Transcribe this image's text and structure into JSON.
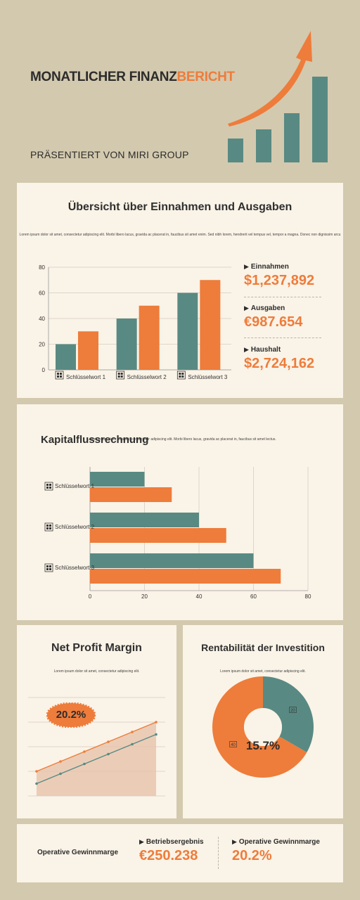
{
  "header": {
    "title_part1": "MONATLICHER FINANZ",
    "title_part2": "BERICHT",
    "subtitle": "PRÄSENTIERT VON MIRI GROUP",
    "accent_color": "#ee7c3b",
    "teal_color": "#588a83"
  },
  "overview": {
    "title": "Übersicht über Einnahmen und Ausgaben",
    "lorem": "Lorem ipsum dolor sit amet, consectetur adipiscing elit. Morbi libero lacus, gravida ac placerat in, faucibus sit amet enim. Sed nibh lorem, hendrerit vel tempus vel, tempor a magna. Donec non dignissim arcu",
    "stats": [
      {
        "label": "Einnahmen",
        "value": "$1,237,892"
      },
      {
        "label": "Ausgaben",
        "value": "€987.654"
      },
      {
        "label": "Haushalt",
        "value": "$2,724,162"
      }
    ]
  },
  "cashflow": {
    "title": "Kapitalflussrechnung",
    "lorem": "Lorem ipsum dolor sit amet, consectetur adipiscing elit. Morbi libero lacus, gravida ac placerat in, faucibus sit amet lectus."
  },
  "npm": {
    "title": "Net Profit Margin",
    "lorem": "Lorem ipsum dolor sit amet, consectetur adipiscing elit.",
    "badge": "20.2%"
  },
  "roi": {
    "title": "Rentabilität der Investition",
    "lorem": "Lorem ipsum dolor sit amet, consectetur adipiscing elit.",
    "center": "15.7%"
  },
  "footer": {
    "label": "Operative Gewinnmarge",
    "stats": [
      {
        "label": "Betriebsergebnis",
        "value": "€250.238"
      },
      {
        "label": "Operative Gewinnmarge",
        "value": "20.2%"
      }
    ]
  },
  "chart_data": [
    {
      "type": "bar",
      "categories": [
        "Schlüsselwort 1",
        "Schlüsselwort 2",
        "Schlüsselwort 3"
      ],
      "series": [
        {
          "values": [
            20,
            40,
            60
          ],
          "color": "#588a83"
        },
        {
          "values": [
            30,
            50,
            70
          ],
          "color": "#ee7c3b"
        }
      ],
      "ylim": [
        0,
        80
      ],
      "yticks": [
        0,
        20,
        40,
        60,
        80
      ],
      "grid": true
    },
    {
      "type": "bar",
      "orientation": "horizontal",
      "categories": [
        "Schlüsselwort 1",
        "Schlüsselwort 2",
        "Schlüsselwort 3"
      ],
      "series": [
        {
          "values": [
            20,
            40,
            60
          ],
          "color": "#588a83"
        },
        {
          "values": [
            30,
            50,
            70
          ],
          "color": "#ee7c3b"
        }
      ],
      "xlim": [
        0,
        80
      ],
      "xticks": [
        0,
        20,
        40,
        60,
        80
      ],
      "grid": true
    },
    {
      "type": "line",
      "series": [
        {
          "values": [
            10,
            14,
            18,
            22,
            26,
            30
          ],
          "color": "#ee7c3b"
        },
        {
          "values": [
            5,
            9,
            13,
            17,
            21,
            25
          ],
          "color": "#588a83"
        }
      ],
      "grid": true
    },
    {
      "type": "pie",
      "donut": true,
      "slices": [
        {
          "value": 20,
          "label": "20",
          "color": "#588a83"
        },
        {
          "value": 40,
          "label": "40",
          "color": "#ee7c3b"
        }
      ]
    }
  ]
}
